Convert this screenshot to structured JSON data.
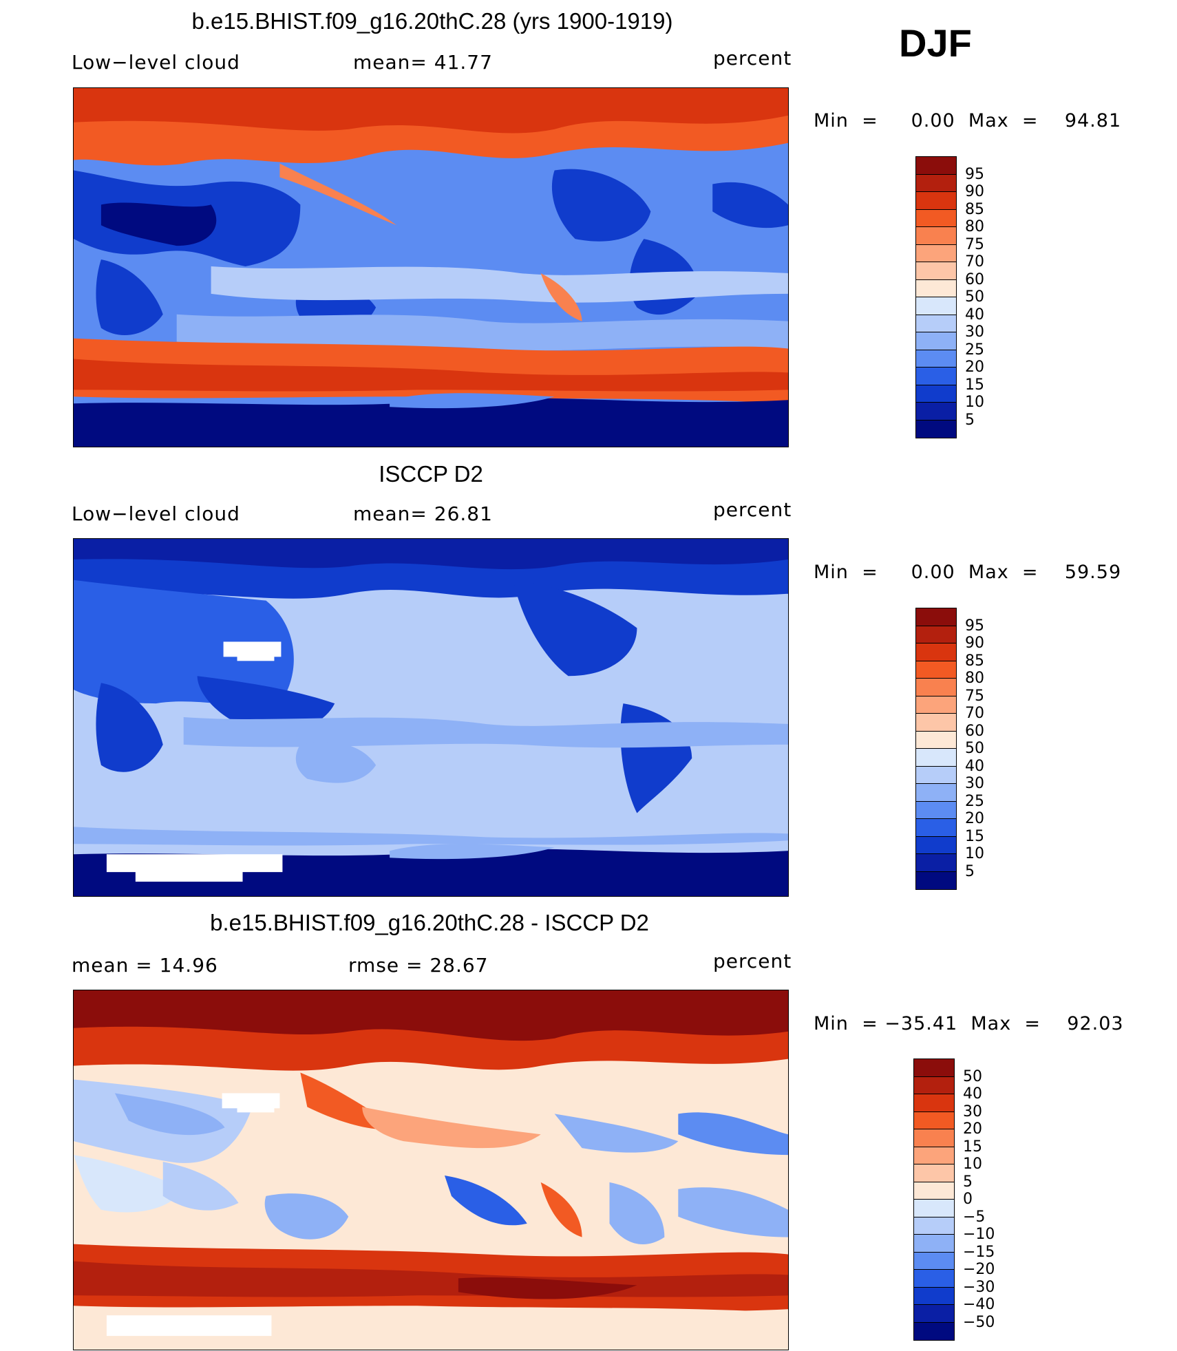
{
  "season": "DJF",
  "panels": [
    {
      "title": "b.e15.BHIST.f09_g16.20thC.28 (yrs 1900-1919)",
      "left_label": "Low−level cloud",
      "center_label": "mean=   41.77",
      "units": "percent",
      "minmax": "Min  =     0.00  Max  =    94.81",
      "colorbar": {
        "labels": [
          "95",
          "90",
          "85",
          "80",
          "75",
          "70",
          "60",
          "50",
          "40",
          "30",
          "25",
          "20",
          "15",
          "10",
          "5"
        ],
        "colors": [
          "#8b0d0b",
          "#b3200e",
          "#d9350f",
          "#f25a23",
          "#f9814f",
          "#fca47b",
          "#fdc6a8",
          "#fde8d6",
          "#d8e7fb",
          "#b6cdf9",
          "#8eb1f6",
          "#5c8cf2",
          "#2a5fe6",
          "#103ccc",
          "#0a1fa5",
          "#000a80"
        ]
      }
    },
    {
      "title": "ISCCP D2",
      "left_label": "Low−level cloud",
      "center_label": "mean=   26.81",
      "units": "percent",
      "minmax": "Min  =     0.00  Max  =    59.59",
      "colorbar": {
        "labels": [
          "95",
          "90",
          "85",
          "80",
          "75",
          "70",
          "60",
          "50",
          "40",
          "30",
          "25",
          "20",
          "15",
          "10",
          "5"
        ],
        "colors": [
          "#8b0d0b",
          "#b3200e",
          "#d9350f",
          "#f25a23",
          "#f9814f",
          "#fca47b",
          "#fdc6a8",
          "#fde8d6",
          "#d8e7fb",
          "#b6cdf9",
          "#8eb1f6",
          "#5c8cf2",
          "#2a5fe6",
          "#103ccc",
          "#0a1fa5",
          "#000a80"
        ]
      }
    },
    {
      "title": "b.e15.BHIST.f09_g16.20thC.28 - ISCCP D2",
      "left_label": "mean  =    14.96",
      "center_label": "rmse  =    28.67",
      "units": "percent",
      "minmax": "Min  = −35.41  Max  =    92.03",
      "colorbar": {
        "labels": [
          "50",
          "40",
          "30",
          "20",
          "15",
          "10",
          "5",
          "0",
          "−5",
          "−10",
          "−15",
          "−20",
          "−30",
          "−40",
          "−50"
        ],
        "colors": [
          "#8b0d0b",
          "#b3200e",
          "#d9350f",
          "#f25a23",
          "#f9814f",
          "#fca47b",
          "#fdc6a8",
          "#fde8d6",
          "#d8e7fb",
          "#b6cdf9",
          "#8eb1f6",
          "#5c8cf2",
          "#2a5fe6",
          "#103ccc",
          "#0a1fa5",
          "#000a80"
        ]
      }
    }
  ]
}
